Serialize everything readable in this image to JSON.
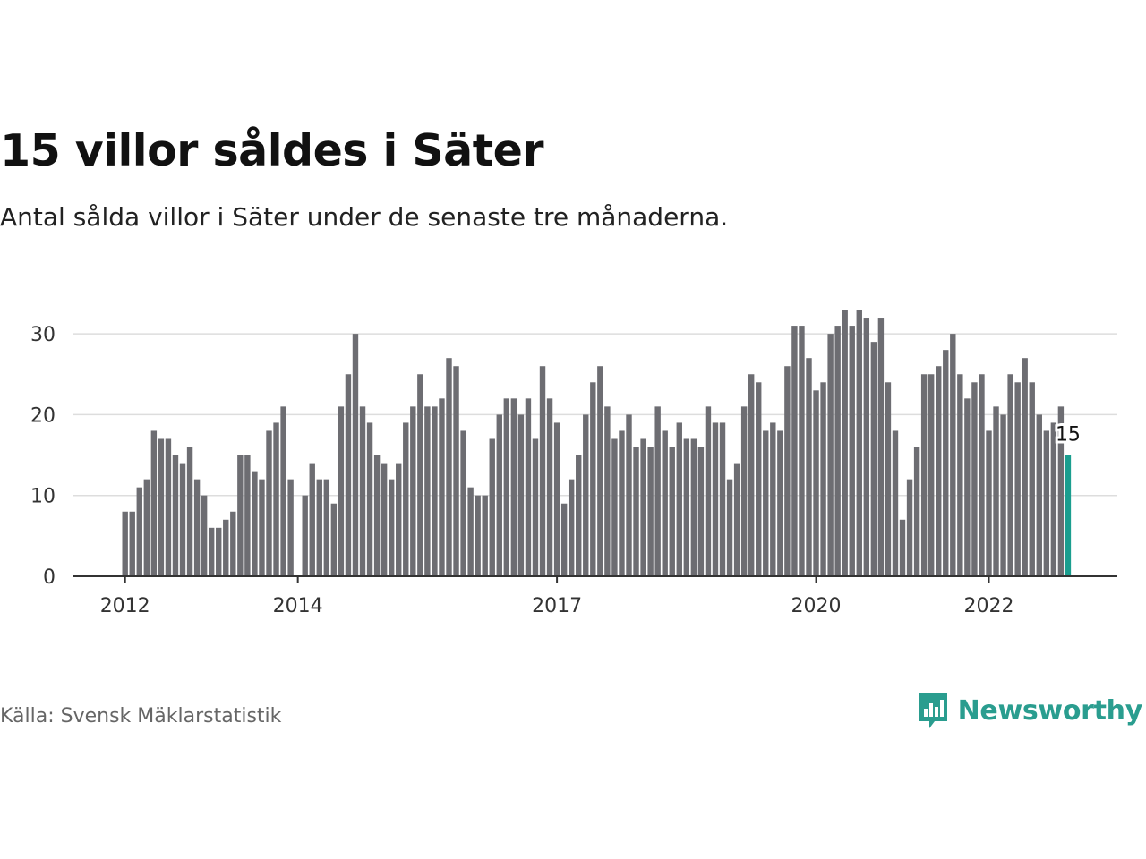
{
  "header": {
    "title": "15 villor såldes i Säter",
    "subtitle": "Antal sålda villor i Säter under de senaste tre månaderna."
  },
  "footer": {
    "source": "Källa: Svensk Mäklarstatistik",
    "brand": "Newsworthy",
    "brand_icon": "bar-chart-speech-bubble-icon"
  },
  "colors": {
    "bar": "#6d6d72",
    "highlight": "#1a9e8f",
    "grid": "#dddddd",
    "axis": "#333333",
    "brand": "#2a9d8f"
  },
  "chart_data": {
    "type": "bar",
    "start": "2012-01",
    "ylim": [
      0,
      35
    ],
    "y_ticks": [
      0,
      10,
      20,
      30
    ],
    "x_ticks": [
      {
        "label": "2012",
        "date": "2012-01"
      },
      {
        "label": "2014",
        "date": "2014-01"
      },
      {
        "label": "2017",
        "date": "2017-01"
      },
      {
        "label": "2020",
        "date": "2020-01"
      },
      {
        "label": "2022",
        "date": "2022-01"
      }
    ],
    "grid": true,
    "values": [
      8,
      8,
      11,
      12,
      18,
      17,
      17,
      15,
      14,
      16,
      12,
      10,
      6,
      6,
      7,
      8,
      15,
      15,
      13,
      12,
      18,
      19,
      21,
      12,
      null,
      10,
      14,
      12,
      12,
      9,
      21,
      25,
      30,
      21,
      19,
      15,
      14,
      12,
      14,
      19,
      21,
      25,
      21,
      21,
      22,
      27,
      26,
      18,
      11,
      10,
      10,
      17,
      20,
      22,
      22,
      20,
      22,
      17,
      26,
      22,
      19,
      9,
      12,
      15,
      20,
      24,
      26,
      21,
      17,
      18,
      20,
      16,
      17,
      16,
      21,
      18,
      16,
      19,
      17,
      17,
      16,
      21,
      19,
      19,
      12,
      14,
      21,
      25,
      24,
      18,
      19,
      18,
      26,
      31,
      31,
      27,
      23,
      24,
      30,
      31,
      33,
      31,
      33,
      32,
      29,
      32,
      24,
      18,
      7,
      12,
      16,
      25,
      25,
      26,
      28,
      30,
      25,
      22,
      24,
      25,
      18,
      21,
      20,
      25,
      24,
      27,
      24,
      20,
      18,
      19,
      21,
      15
    ],
    "highlight_label": "15"
  }
}
